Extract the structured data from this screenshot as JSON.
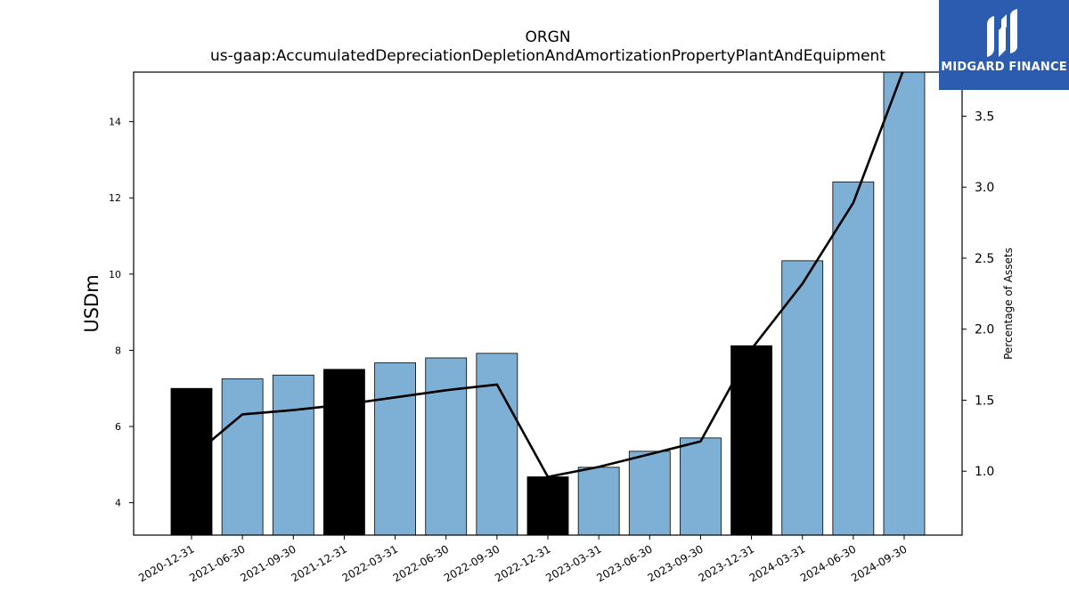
{
  "logo": {
    "text": "MIDGARD FINANCE",
    "icon": "midgard-m-logo"
  },
  "chart_data": {
    "type": "bar",
    "title": "ORGN",
    "subtitle": "us-gaap:AccumulatedDepreciationDepletionAndAmortizationPropertyPlantAndEquipment",
    "ylabel": "USDm",
    "y2label": "Percentage of Assets",
    "ylim": [
      3.15,
      15.3
    ],
    "y2lim": [
      0.55,
      3.81
    ],
    "yticks": [
      4,
      6,
      8,
      10,
      12,
      14
    ],
    "y2ticks": [
      1.0,
      1.5,
      2.0,
      2.5,
      3.0,
      3.5
    ],
    "categories": [
      "2020-12-31",
      "2021-06-30",
      "2021-09-30",
      "2021-12-31",
      "2022-03-31",
      "2022-06-30",
      "2022-09-30",
      "2022-12-31",
      "2023-03-31",
      "2023-06-30",
      "2023-09-30",
      "2023-12-31",
      "2024-03-31",
      "2024-06-30",
      "2024-09-30"
    ],
    "series": [
      {
        "type": "bar",
        "axis": "left",
        "values": [
          7.0,
          7.25,
          7.35,
          7.5,
          7.67,
          7.8,
          7.92,
          4.68,
          4.93,
          5.35,
          5.7,
          8.12,
          10.35,
          12.42,
          15.3
        ]
      },
      {
        "type": "line",
        "axis": "right",
        "values": [
          1.1,
          1.4,
          1.43,
          1.47,
          1.52,
          1.57,
          1.61,
          0.96,
          1.03,
          1.12,
          1.21,
          1.86,
          2.32,
          2.89,
          3.84
        ]
      }
    ],
    "colors": {
      "bar": "#7eb0d5",
      "bar_year_end": "#000000",
      "line": "#000000"
    }
  }
}
